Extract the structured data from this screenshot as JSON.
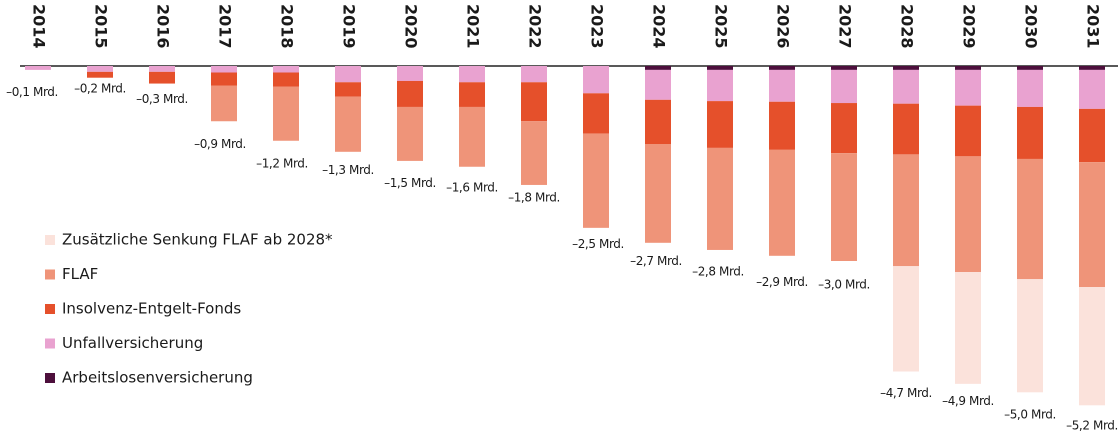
{
  "chart_data": {
    "type": "stacked-bar",
    "categories": [
      "2014",
      "2015",
      "2016",
      "2017",
      "2018",
      "2019",
      "2020",
      "2021",
      "2022",
      "2023",
      "2024",
      "2025",
      "2026",
      "2027",
      "2028",
      "2029",
      "2030",
      "2031"
    ],
    "series": [
      {
        "name": "Arbeitslosenversicherung",
        "color": "#4d0f3c",
        "values": [
          null,
          null,
          null,
          null,
          null,
          null,
          null,
          null,
          null,
          null,
          -0.06,
          -0.06,
          -0.06,
          -0.06,
          -0.06,
          -0.06,
          -0.06,
          -0.06
        ]
      },
      {
        "name": "Unfallversicherung",
        "color": "#e9a2d0",
        "values": [
          -0.06,
          -0.09,
          -0.09,
          -0.1,
          -0.1,
          -0.25,
          -0.23,
          -0.25,
          -0.25,
          -0.42,
          -0.46,
          -0.48,
          -0.49,
          -0.51,
          -0.52,
          -0.55,
          -0.57,
          -0.6
        ]
      },
      {
        "name": "Insolvenz-Entgelt-Fonds",
        "color": "#e5502b",
        "values": [
          null,
          -0.09,
          -0.18,
          -0.2,
          -0.22,
          -0.22,
          -0.4,
          -0.38,
          -0.6,
          -0.62,
          -0.68,
          -0.72,
          -0.74,
          -0.77,
          -0.78,
          -0.78,
          -0.8,
          -0.82
        ]
      },
      {
        "name": "FLAF",
        "color": "#ef9479",
        "values": [
          null,
          null,
          null,
          -0.55,
          -0.83,
          -0.85,
          -0.83,
          -0.92,
          -0.98,
          -1.45,
          -1.52,
          -1.57,
          -1.63,
          -1.66,
          -1.72,
          -1.78,
          -1.85,
          -1.92
        ]
      },
      {
        "name": "Zusätzliche Senkung FLAF ab 2028*",
        "color": "#fbe2db",
        "values": [
          null,
          null,
          null,
          null,
          null,
          null,
          null,
          null,
          null,
          null,
          null,
          null,
          null,
          null,
          -1.62,
          -1.72,
          -1.74,
          -1.82
        ]
      }
    ],
    "totals": {
      "values": [
        -0.1,
        -0.2,
        -0.3,
        -0.9,
        -1.2,
        -1.3,
        -1.5,
        -1.6,
        -1.8,
        -2.5,
        -2.7,
        -2.8,
        -2.9,
        -3.0,
        -4.7,
        -4.9,
        -5.0,
        -5.2
      ],
      "value_labels": [
        "–0,1 Mrd.",
        "–0,2 Mrd.",
        "–0,3 Mrd.",
        "–0,9 Mrd.",
        "–1,2 Mrd.",
        "–1,3 Mrd.",
        "–1,5 Mrd.",
        "–1,6 Mrd.",
        "–1,8 Mrd.",
        "–2,5 Mrd.",
        "–2,7 Mrd.",
        "–2,8 Mrd.",
        "–2,9 Mrd.",
        "–3,0 Mrd.",
        "–4,7 Mrd.",
        "–4,9 Mrd.",
        "–5,0 Mrd.",
        "–5,2 Mrd."
      ]
    }
  }
}
